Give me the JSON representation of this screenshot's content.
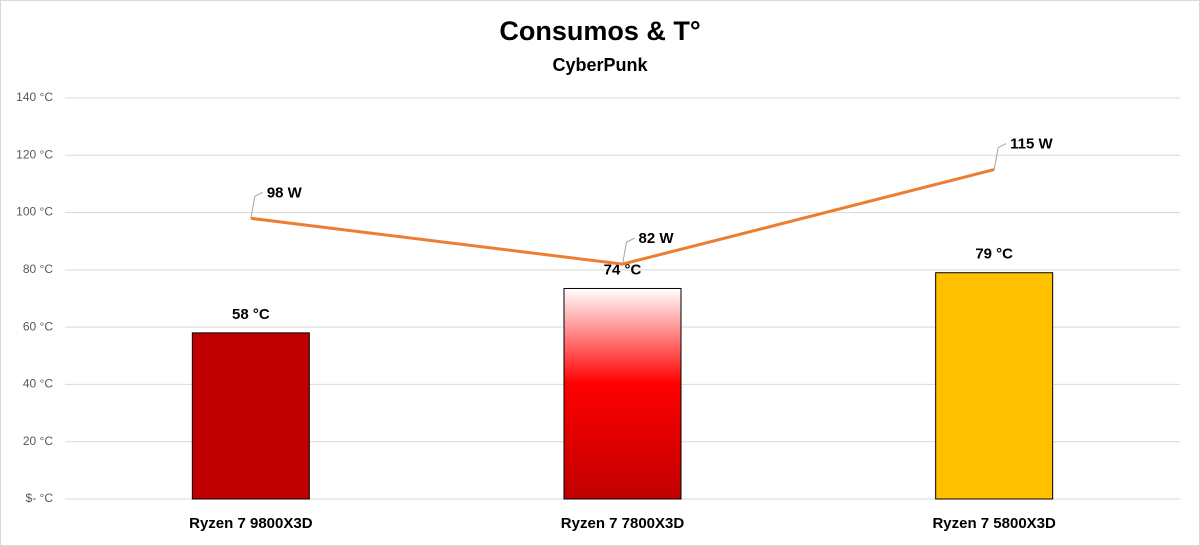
{
  "chart_data": {
    "type": "combo",
    "title": "Consumos & T°",
    "subtitle": "CyberPunk",
    "categories": [
      "Ryzen 7 9800X3D",
      "Ryzen 7 7800X3D",
      "Ryzen 7 5800X3D"
    ],
    "series": [
      {
        "type": "bar",
        "colors": [
          "#c00000",
          "#ff0000",
          "#ffc000"
        ],
        "fill_styles": [
          "solid",
          "gradient",
          "solid"
        ],
        "values": [
          58,
          73.5,
          79
        ],
        "value_labels": [
          "58 °C",
          "74 °C",
          "79 °C"
        ]
      },
      {
        "type": "line",
        "color": "#ed7d31",
        "values": [
          98,
          82,
          115
        ],
        "value_labels": [
          "98 W",
          "82 W",
          "115 W"
        ]
      }
    ],
    "ylim": [
      0,
      140
    ],
    "yticks": [
      {
        "value": 0,
        "label": "$- °C"
      },
      {
        "value": 20,
        "label": "20 °C"
      },
      {
        "value": 40,
        "label": "40 °C"
      },
      {
        "value": 60,
        "label": "60 °C"
      },
      {
        "value": 80,
        "label": "80 °C"
      },
      {
        "value": 100,
        "label": "100 °C"
      },
      {
        "value": 120,
        "label": "120 °C"
      },
      {
        "value": 140,
        "label": "140 °C"
      }
    ],
    "grid": true
  }
}
